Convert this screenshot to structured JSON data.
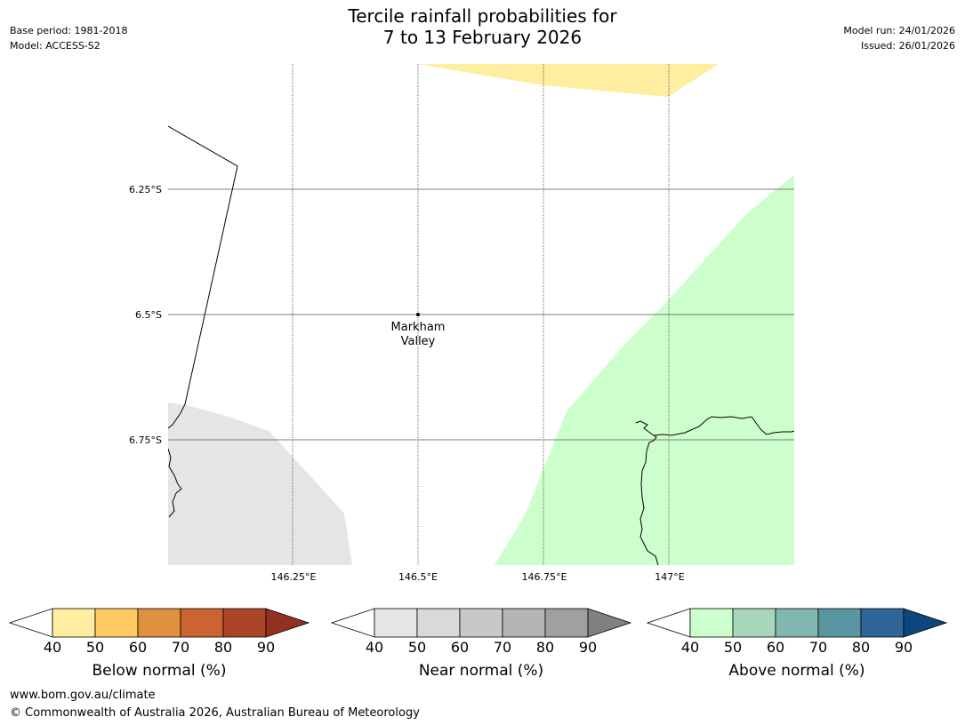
{
  "title": {
    "line1": "Tercile rainfall probabilities for",
    "line2": "7 to 13 February 2026"
  },
  "meta_left": {
    "base_period": "Base period: 1981-2018",
    "model": "Model: ACCESS-S2"
  },
  "meta_right": {
    "model_run": "Model run: 24/01/2026",
    "issued": "Issued: 26/01/2026"
  },
  "map": {
    "lat_labels": [
      "6.25°S",
      "6.5°S",
      "6.75°S"
    ],
    "lon_labels": [
      "146.25°E",
      "146.5°E",
      "146.75°E",
      "147°E"
    ],
    "location": {
      "name_line1": "Markham",
      "name_line2": "Valley"
    },
    "regions": [
      {
        "category": "below",
        "level": "40-50",
        "color": "#ffeda0"
      },
      {
        "category": "near",
        "level": "40-50",
        "color": "#e5e5e5"
      },
      {
        "category": "above",
        "level": "40-50",
        "color": "#ccffcc"
      }
    ]
  },
  "colorbars": [
    {
      "id": "below",
      "label": "Below normal (%)",
      "colors": [
        "#ffeda0",
        "#fecb62",
        "#e0913f",
        "#cc6431",
        "#ac4527"
      ],
      "extend_color": "#94301f",
      "ticks": [
        "40",
        "50",
        "60",
        "70",
        "80",
        "90"
      ]
    },
    {
      "id": "near",
      "label": "Near normal (%)",
      "colors": [
        "#e5e5e5",
        "#d9d9d9",
        "#c8c8c8",
        "#b5b5b5",
        "#a0a0a0"
      ],
      "extend_color": "#808080",
      "ticks": [
        "40",
        "50",
        "60",
        "70",
        "80",
        "90"
      ]
    },
    {
      "id": "above",
      "label": "Above normal (%)",
      "colors": [
        "#ccffcc",
        "#a6d7bb",
        "#82b7b0",
        "#5a96a1",
        "#2f6597"
      ],
      "extend_color": "#0e457c",
      "ticks": [
        "40",
        "50",
        "60",
        "70",
        "80",
        "90"
      ]
    }
  ],
  "footer": {
    "url": "www.bom.gov.au/climate",
    "copyright": "© Commonwealth of Australia 2026, Australian Bureau of Meteorology"
  }
}
